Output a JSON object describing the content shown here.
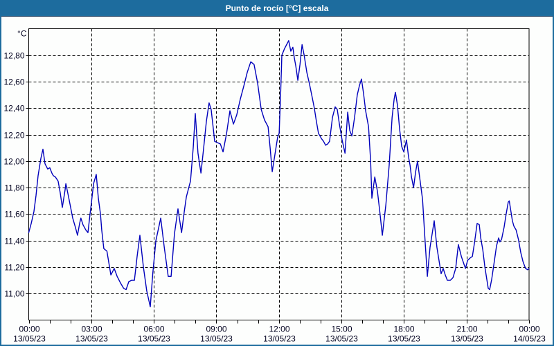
{
  "window": {
    "title": "Punto de rocío [°C] escala",
    "title_bar_color": "#1d6c9e",
    "border_color": "#1d6c9e",
    "background_color": "#fdfefd"
  },
  "chart_data": {
    "type": "line",
    "title": "Punto de rocío [°C] escala",
    "ylabel": "°C",
    "xlabel": "",
    "legend_position": "none",
    "grid": "dashed major gridlines, horizontal and vertical",
    "line_color": "#0000bb",
    "grid_color": "#000000",
    "tick_label_color": "#00001e",
    "ylim": [
      10.8,
      13.0
    ],
    "xlim": [
      0,
      24
    ],
    "x_minor_tick_step_hours": 1,
    "y_ticks": [
      {
        "value": 11.0,
        "label": "11,00"
      },
      {
        "value": 11.2,
        "label": "11,20"
      },
      {
        "value": 11.4,
        "label": "11,40"
      },
      {
        "value": 11.6,
        "label": "11,60"
      },
      {
        "value": 11.8,
        "label": "11,80"
      },
      {
        "value": 12.0,
        "label": "12,00"
      },
      {
        "value": 12.2,
        "label": "12,20"
      },
      {
        "value": 12.4,
        "label": "12,40"
      },
      {
        "value": 12.6,
        "label": "12,60"
      },
      {
        "value": 12.8,
        "label": "12,80"
      }
    ],
    "x_ticks": [
      {
        "hour": 0,
        "time": "00:00",
        "date": "13/05/23"
      },
      {
        "hour": 3,
        "time": "03:00",
        "date": "13/05/23"
      },
      {
        "hour": 6,
        "time": "06:00",
        "date": "13/05/23"
      },
      {
        "hour": 9,
        "time": "09:00",
        "date": "13/05/23"
      },
      {
        "hour": 12,
        "time": "12:00",
        "date": "13/05/23"
      },
      {
        "hour": 15,
        "time": "15:00",
        "date": "13/05/23"
      },
      {
        "hour": 18,
        "time": "18:00",
        "date": "13/05/23"
      },
      {
        "hour": 21,
        "time": "21:00",
        "date": "13/05/23"
      },
      {
        "hour": 24,
        "time": "00:00",
        "date": "14/05/23"
      }
    ],
    "series": [
      {
        "name": "Punto de rocío [°C]",
        "points": [
          [
            0.0,
            11.46
          ],
          [
            0.12,
            11.53
          ],
          [
            0.25,
            11.62
          ],
          [
            0.35,
            11.74
          ],
          [
            0.45,
            11.89
          ],
          [
            0.58,
            12.02
          ],
          [
            0.68,
            12.09
          ],
          [
            0.78,
            11.98
          ],
          [
            0.91,
            11.94
          ],
          [
            1.01,
            11.95
          ],
          [
            1.11,
            11.91
          ],
          [
            1.18,
            11.89
          ],
          [
            1.28,
            11.88
          ],
          [
            1.41,
            11.85
          ],
          [
            1.51,
            11.76
          ],
          [
            1.61,
            11.65
          ],
          [
            1.74,
            11.78
          ],
          [
            1.78,
            11.83
          ],
          [
            1.91,
            11.73
          ],
          [
            2.01,
            11.65
          ],
          [
            2.11,
            11.57
          ],
          [
            2.24,
            11.5
          ],
          [
            2.34,
            11.44
          ],
          [
            2.44,
            11.53
          ],
          [
            2.5,
            11.57
          ],
          [
            2.6,
            11.52
          ],
          [
            2.74,
            11.48
          ],
          [
            2.84,
            11.46
          ],
          [
            2.94,
            11.6
          ],
          [
            3.01,
            11.69
          ],
          [
            3.11,
            11.83
          ],
          [
            3.24,
            11.9
          ],
          [
            3.34,
            11.72
          ],
          [
            3.44,
            11.6
          ],
          [
            3.5,
            11.48
          ],
          [
            3.6,
            11.34
          ],
          [
            3.75,
            11.32
          ],
          [
            3.94,
            11.14
          ],
          [
            4.1,
            11.19
          ],
          [
            4.24,
            11.13
          ],
          [
            4.4,
            11.08
          ],
          [
            4.55,
            11.04
          ],
          [
            4.67,
            11.03
          ],
          [
            4.8,
            11.09
          ],
          [
            4.93,
            11.1
          ],
          [
            5.07,
            11.1
          ],
          [
            5.2,
            11.28
          ],
          [
            5.33,
            11.44
          ],
          [
            5.5,
            11.2
          ],
          [
            5.66,
            11.02
          ],
          [
            5.83,
            10.9
          ],
          [
            5.95,
            11.15
          ],
          [
            6.1,
            11.4
          ],
          [
            6.33,
            11.57
          ],
          [
            6.5,
            11.35
          ],
          [
            6.69,
            11.13
          ],
          [
            6.83,
            11.13
          ],
          [
            6.99,
            11.45
          ],
          [
            7.16,
            11.64
          ],
          [
            7.33,
            11.46
          ],
          [
            7.46,
            11.62
          ],
          [
            7.56,
            11.73
          ],
          [
            7.66,
            11.79
          ],
          [
            7.76,
            11.85
          ],
          [
            7.89,
            12.1
          ],
          [
            7.99,
            12.36
          ],
          [
            8.12,
            12.06
          ],
          [
            8.2,
            11.97
          ],
          [
            8.26,
            11.91
          ],
          [
            8.39,
            12.1
          ],
          [
            8.52,
            12.3
          ],
          [
            8.65,
            12.44
          ],
          [
            8.75,
            12.39
          ],
          [
            8.85,
            12.25
          ],
          [
            8.92,
            12.15
          ],
          [
            9.05,
            12.14
          ],
          [
            9.19,
            12.13
          ],
          [
            9.32,
            12.07
          ],
          [
            9.49,
            12.21
          ],
          [
            9.65,
            12.38
          ],
          [
            9.82,
            12.28
          ],
          [
            9.98,
            12.35
          ],
          [
            10.15,
            12.47
          ],
          [
            10.32,
            12.57
          ],
          [
            10.48,
            12.67
          ],
          [
            10.65,
            12.75
          ],
          [
            10.81,
            12.73
          ],
          [
            10.98,
            12.59
          ],
          [
            11.15,
            12.39
          ],
          [
            11.31,
            12.31
          ],
          [
            11.48,
            12.26
          ],
          [
            11.58,
            12.1
          ],
          [
            11.68,
            11.92
          ],
          [
            11.81,
            12.05
          ],
          [
            11.94,
            12.18
          ],
          [
            12.01,
            12.21
          ],
          [
            12.08,
            12.5
          ],
          [
            12.14,
            12.8
          ],
          [
            12.27,
            12.85
          ],
          [
            12.37,
            12.88
          ],
          [
            12.47,
            12.91
          ],
          [
            12.57,
            12.83
          ],
          [
            12.67,
            12.86
          ],
          [
            12.74,
            12.78
          ],
          [
            12.81,
            12.72
          ],
          [
            12.91,
            12.61
          ],
          [
            13.01,
            12.73
          ],
          [
            13.11,
            12.88
          ],
          [
            13.21,
            12.8
          ],
          [
            13.34,
            12.67
          ],
          [
            13.47,
            12.58
          ],
          [
            13.6,
            12.48
          ],
          [
            13.7,
            12.4
          ],
          [
            13.8,
            12.3
          ],
          [
            13.9,
            12.21
          ],
          [
            14.04,
            12.17
          ],
          [
            14.14,
            12.15
          ],
          [
            14.24,
            12.12
          ],
          [
            14.34,
            12.13
          ],
          [
            14.43,
            12.15
          ],
          [
            14.57,
            12.33
          ],
          [
            14.7,
            12.41
          ],
          [
            14.8,
            12.39
          ],
          [
            14.9,
            12.28
          ],
          [
            15.03,
            12.16
          ],
          [
            15.17,
            12.06
          ],
          [
            15.3,
            12.37
          ],
          [
            15.4,
            12.23
          ],
          [
            15.5,
            12.19
          ],
          [
            15.63,
            12.33
          ],
          [
            15.76,
            12.5
          ],
          [
            15.86,
            12.57
          ],
          [
            15.96,
            12.62
          ],
          [
            16.06,
            12.51
          ],
          [
            16.16,
            12.38
          ],
          [
            16.3,
            12.26
          ],
          [
            16.4,
            12.0
          ],
          [
            16.46,
            11.72
          ],
          [
            16.6,
            11.88
          ],
          [
            16.66,
            11.83
          ],
          [
            16.73,
            11.77
          ],
          [
            16.83,
            11.63
          ],
          [
            16.96,
            11.44
          ],
          [
            17.13,
            11.67
          ],
          [
            17.29,
            11.97
          ],
          [
            17.43,
            12.33
          ],
          [
            17.53,
            12.47
          ],
          [
            17.59,
            12.52
          ],
          [
            17.69,
            12.42
          ],
          [
            17.79,
            12.24
          ],
          [
            17.89,
            12.11
          ],
          [
            17.99,
            12.07
          ],
          [
            18.12,
            12.16
          ],
          [
            18.22,
            12.03
          ],
          [
            18.29,
            11.97
          ],
          [
            18.36,
            11.88
          ],
          [
            18.46,
            11.8
          ],
          [
            18.56,
            11.92
          ],
          [
            18.65,
            12.0
          ],
          [
            18.79,
            11.83
          ],
          [
            18.89,
            11.71
          ],
          [
            18.99,
            11.45
          ],
          [
            19.12,
            11.13
          ],
          [
            19.25,
            11.35
          ],
          [
            19.45,
            11.55
          ],
          [
            19.58,
            11.35
          ],
          [
            19.78,
            11.15
          ],
          [
            19.88,
            11.19
          ],
          [
            19.98,
            11.14
          ],
          [
            20.08,
            11.1
          ],
          [
            20.22,
            11.1
          ],
          [
            20.35,
            11.12
          ],
          [
            20.48,
            11.19
          ],
          [
            20.61,
            11.37
          ],
          [
            20.75,
            11.28
          ],
          [
            20.88,
            11.22
          ],
          [
            20.95,
            11.19
          ],
          [
            21.05,
            11.25
          ],
          [
            21.18,
            11.27
          ],
          [
            21.28,
            11.28
          ],
          [
            21.38,
            11.38
          ],
          [
            21.51,
            11.53
          ],
          [
            21.61,
            11.52
          ],
          [
            21.68,
            11.42
          ],
          [
            21.78,
            11.33
          ],
          [
            21.88,
            11.2
          ],
          [
            21.98,
            11.1
          ],
          [
            22.04,
            11.04
          ],
          [
            22.11,
            11.03
          ],
          [
            22.21,
            11.11
          ],
          [
            22.34,
            11.25
          ],
          [
            22.44,
            11.36
          ],
          [
            22.54,
            11.42
          ],
          [
            22.6,
            11.39
          ],
          [
            22.68,
            11.41
          ],
          [
            22.8,
            11.5
          ],
          [
            22.9,
            11.6
          ],
          [
            23.0,
            11.69
          ],
          [
            23.05,
            11.7
          ],
          [
            23.15,
            11.6
          ],
          [
            23.2,
            11.55
          ],
          [
            23.27,
            11.51
          ],
          [
            23.38,
            11.48
          ],
          [
            23.49,
            11.41
          ],
          [
            23.6,
            11.31
          ],
          [
            23.71,
            11.24
          ],
          [
            23.83,
            11.19
          ],
          [
            23.93,
            11.18
          ],
          [
            24.0,
            11.19
          ]
        ]
      }
    ]
  }
}
